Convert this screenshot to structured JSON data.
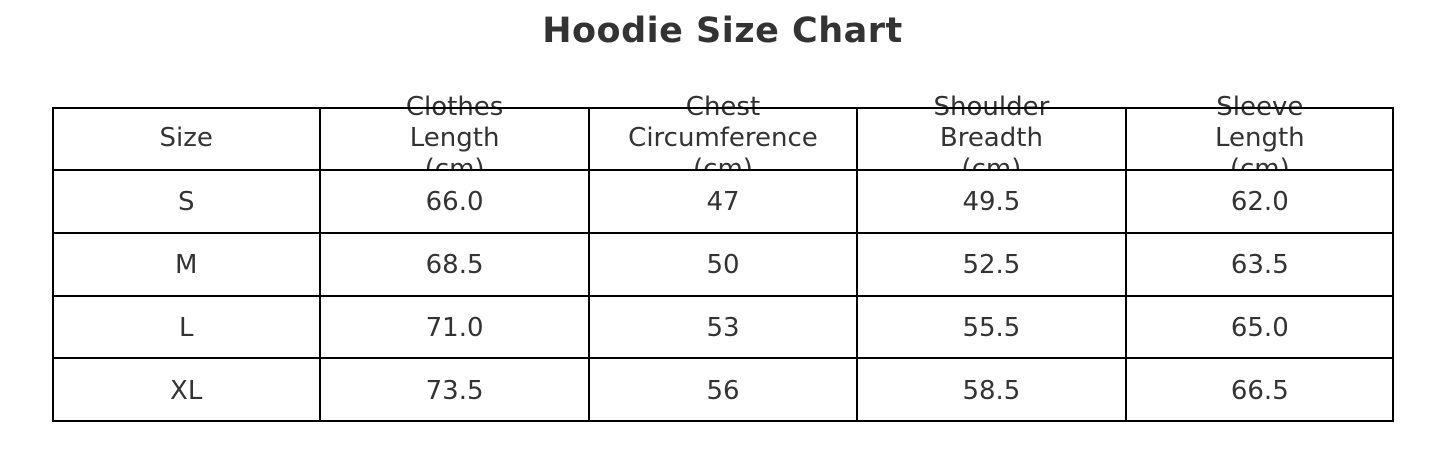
{
  "title": "Hoodie Size Chart",
  "colors": {
    "text": "#333333",
    "border": "#000000",
    "background": "#ffffff"
  },
  "table": {
    "headers": [
      "Size",
      "Clothes\nLength\n(cm)",
      "Chest\nCircumference\n(cm)",
      "Shoulder\nBreadth\n(cm)",
      "Sleeve\nLength\n(cm)"
    ],
    "rows": [
      [
        "S",
        "66.0",
        "47",
        "49.5",
        "62.0"
      ],
      [
        "M",
        "68.5",
        "50",
        "52.5",
        "63.5"
      ],
      [
        "L",
        "71.0",
        "53",
        "55.5",
        "65.0"
      ],
      [
        "XL",
        "73.5",
        "56",
        "58.5",
        "66.5"
      ]
    ]
  },
  "chart_data": {
    "type": "table",
    "title": "Hoodie Size Chart",
    "columns": [
      "Size",
      "Clothes Length (cm)",
      "Chest Circumference (cm)",
      "Shoulder Breadth (cm)",
      "Sleeve Length (cm)"
    ],
    "rows": [
      [
        "S",
        66.0,
        47,
        49.5,
        62.0
      ],
      [
        "M",
        68.5,
        50,
        52.5,
        63.5
      ],
      [
        "L",
        71.0,
        53,
        55.5,
        65.0
      ],
      [
        "XL",
        73.5,
        56,
        58.5,
        66.5
      ]
    ],
    "layout": {
      "grid": "on",
      "header_rows": 1,
      "text_align": "center"
    }
  }
}
